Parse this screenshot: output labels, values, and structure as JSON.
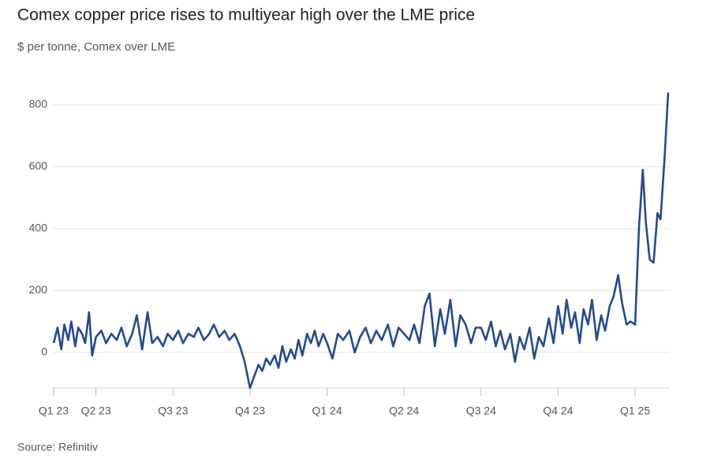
{
  "chart_data": {
    "type": "line",
    "title": "Comex copper price rises to multiyear high over the LME price",
    "subtitle": "$ per tonne, Comex over LME",
    "source": "Source: Refinitiv",
    "x": [
      0.45,
      0.5,
      0.55,
      0.59,
      0.64,
      0.68,
      0.73,
      0.77,
      0.82,
      0.86,
      0.91,
      0.95,
      1,
      1.07,
      1.13,
      1.2,
      1.27,
      1.33,
      1.4,
      1.47,
      1.53,
      1.6,
      1.67,
      1.73,
      1.8,
      1.87,
      1.93,
      2,
      2.07,
      2.13,
      2.2,
      2.27,
      2.33,
      2.4,
      2.47,
      2.53,
      2.6,
      2.67,
      2.73,
      2.8,
      2.87,
      2.93,
      3,
      3.05,
      3.11,
      3.16,
      3.21,
      3.26,
      3.32,
      3.37,
      3.42,
      3.47,
      3.53,
      3.58,
      3.63,
      3.68,
      3.74,
      3.79,
      3.84,
      3.89,
      3.95,
      4,
      4.07,
      4.14,
      4.21,
      4.29,
      4.36,
      4.43,
      4.5,
      4.57,
      4.64,
      4.71,
      4.79,
      4.86,
      4.93,
      5,
      5.07,
      5.13,
      5.2,
      5.27,
      5.33,
      5.4,
      5.47,
      5.53,
      5.6,
      5.67,
      5.73,
      5.8,
      5.87,
      5.93,
      6,
      6.06,
      6.13,
      6.19,
      6.25,
      6.31,
      6.38,
      6.44,
      6.5,
      6.56,
      6.63,
      6.69,
      6.75,
      6.81,
      6.88,
      6.94,
      7,
      7.06,
      7.11,
      7.17,
      7.22,
      7.28,
      7.33,
      7.39,
      7.44,
      7.5,
      7.56,
      7.61,
      7.67,
      7.72,
      7.78,
      7.83,
      7.89,
      7.94,
      8,
      8.05,
      8.1,
      8.14,
      8.19,
      8.24,
      8.29,
      8.33,
      8.38,
      8.43
    ],
    "series": [
      {
        "name": "Comex over LME",
        "color": "#234c8c",
        "values": [
          30,
          80,
          10,
          90,
          40,
          100,
          20,
          80,
          60,
          30,
          130,
          -10,
          50,
          70,
          30,
          60,
          40,
          80,
          20,
          60,
          120,
          10,
          130,
          30,
          50,
          20,
          60,
          40,
          70,
          30,
          60,
          50,
          80,
          40,
          60,
          90,
          50,
          70,
          40,
          60,
          20,
          -30,
          -115,
          -80,
          -40,
          -60,
          -20,
          -40,
          -10,
          -50,
          20,
          -30,
          10,
          -20,
          40,
          -10,
          60,
          30,
          70,
          20,
          60,
          30,
          -20,
          60,
          40,
          70,
          0,
          50,
          80,
          30,
          70,
          40,
          90,
          20,
          80,
          60,
          40,
          90,
          30,
          150,
          190,
          20,
          140,
          60,
          170,
          20,
          120,
          90,
          30,
          80,
          80,
          40,
          100,
          20,
          70,
          10,
          60,
          -30,
          50,
          10,
          80,
          -20,
          50,
          20,
          110,
          30,
          150,
          60,
          170,
          80,
          130,
          30,
          140,
          90,
          170,
          40,
          120,
          70,
          150,
          180,
          250,
          160,
          90,
          100,
          90,
          400,
          590,
          420,
          300,
          290,
          450,
          430,
          620,
          840
        ]
      }
    ],
    "xlim": [
      0.44,
      8.45
    ],
    "xticks": [
      {
        "value": 0.45,
        "label": "Q1 23"
      },
      {
        "value": 1,
        "label": "Q2 23"
      },
      {
        "value": 2,
        "label": "Q3 23"
      },
      {
        "value": 3,
        "label": "Q4 23"
      },
      {
        "value": 4,
        "label": "Q1 24"
      },
      {
        "value": 5,
        "label": "Q2 24"
      },
      {
        "value": 6,
        "label": "Q3 24"
      },
      {
        "value": 7,
        "label": "Q4 24"
      },
      {
        "value": 8,
        "label": "Q1 25"
      }
    ],
    "ylim": [
      -115,
      860
    ],
    "yticks": [
      0,
      200,
      400,
      600,
      800
    ],
    "grid": true
  }
}
